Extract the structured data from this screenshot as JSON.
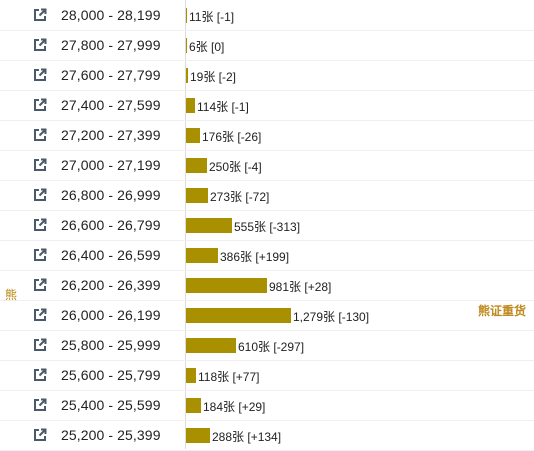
{
  "labels": {
    "side": "熊",
    "right": "熊证重货"
  },
  "colors": {
    "bar": "#a89000",
    "accent": "#c08a1e",
    "icon": "#4a5a6a"
  },
  "rows": [
    {
      "range": "28,000 - 28,199",
      "count": 11,
      "label": "11张 [-1]"
    },
    {
      "range": "27,800 - 27,999",
      "count": 6,
      "label": "6张 [0]"
    },
    {
      "range": "27,600 - 27,799",
      "count": 19,
      "label": "19张 [-2]"
    },
    {
      "range": "27,400 - 27,599",
      "count": 114,
      "label": "114张 [-1]"
    },
    {
      "range": "27,200 - 27,399",
      "count": 176,
      "label": "176张 [-26]"
    },
    {
      "range": "27,000 - 27,199",
      "count": 250,
      "label": "250张 [-4]"
    },
    {
      "range": "26,800 - 26,999",
      "count": 273,
      "label": "273张 [-72]"
    },
    {
      "range": "26,600 - 26,799",
      "count": 555,
      "label": "555张 [-313]"
    },
    {
      "range": "26,400 - 26,599",
      "count": 386,
      "label": "386张 [+199]"
    },
    {
      "range": "26,200 - 26,399",
      "count": 981,
      "label": "981张 [+28]"
    },
    {
      "range": "26,000 - 26,199",
      "count": 1279,
      "label": "1,279张 [-130]"
    },
    {
      "range": "25,800 - 25,999",
      "count": 610,
      "label": "610张 [-297]"
    },
    {
      "range": "25,600 - 25,799",
      "count": 118,
      "label": "118张 [+77]"
    },
    {
      "range": "25,400 - 25,599",
      "count": 184,
      "label": "184张 [+29]"
    },
    {
      "range": "25,200 - 25,399",
      "count": 288,
      "label": "288张 [+134]"
    }
  ]
}
